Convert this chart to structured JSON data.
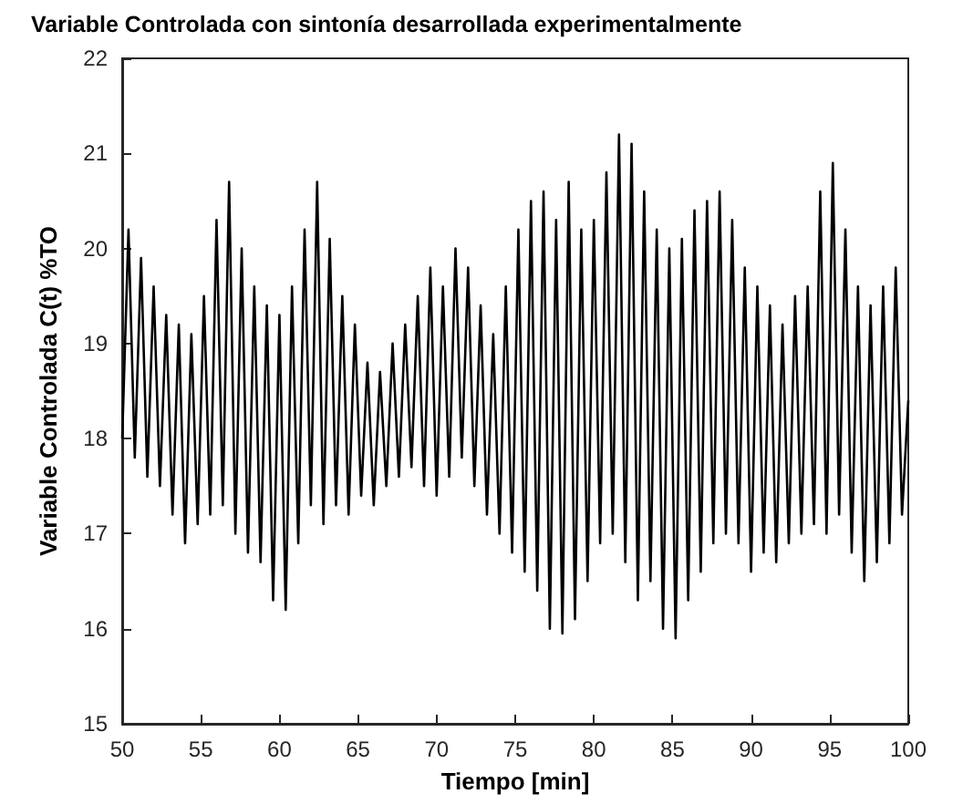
{
  "chart_data": {
    "type": "line",
    "title": "Variable Controlada con sintonía desarrollada experimentalmente",
    "xlabel": "Tiempo [min]",
    "ylabel": "Variable Controlada C(t) %TO",
    "x": [
      50,
      50.4,
      50.8,
      51.2,
      51.6,
      52,
      52.4,
      52.8,
      53.2,
      53.6,
      54,
      54.4,
      54.8,
      55.2,
      55.6,
      56,
      56.4,
      56.8,
      57.2,
      57.6,
      58,
      58.4,
      58.8,
      59.2,
      59.6,
      60,
      60.4,
      60.8,
      61.2,
      61.6,
      62,
      62.4,
      62.8,
      63.2,
      63.6,
      64,
      64.4,
      64.8,
      65.2,
      65.6,
      66,
      66.4,
      66.8,
      67.2,
      67.6,
      68,
      68.4,
      68.8,
      69.2,
      69.6,
      70,
      70.4,
      70.8,
      71.2,
      71.6,
      72,
      72.4,
      72.8,
      73.2,
      73.6,
      74,
      74.4,
      74.8,
      75.2,
      75.6,
      76,
      76.4,
      76.8,
      77.2,
      77.6,
      78,
      78.4,
      78.8,
      79.2,
      79.6,
      80,
      80.4,
      80.8,
      81.2,
      81.6,
      82,
      82.4,
      82.8,
      83.2,
      83.6,
      84,
      84.4,
      84.8,
      85.2,
      85.6,
      86,
      86.4,
      86.8,
      87.2,
      87.6,
      88,
      88.4,
      88.8,
      89.2,
      89.6,
      90,
      90.4,
      90.8,
      91.2,
      91.6,
      92,
      92.4,
      92.8,
      93.2,
      93.6,
      94,
      94.4,
      94.8,
      95.2,
      95.6,
      96,
      96.4,
      96.8,
      97.2,
      97.6,
      98,
      98.4,
      98.8,
      99.2,
      99.6,
      100
    ],
    "series": [
      {
        "color": "#000000",
        "values": [
          18.0,
          20.2,
          17.8,
          19.9,
          17.6,
          19.6,
          17.5,
          19.3,
          17.2,
          19.2,
          16.9,
          19.1,
          17.1,
          19.5,
          17.2,
          20.3,
          17.3,
          20.7,
          17.0,
          20.0,
          16.8,
          19.6,
          16.7,
          19.4,
          16.3,
          19.3,
          16.2,
          19.6,
          16.9,
          20.2,
          17.3,
          20.7,
          17.1,
          20.1,
          17.3,
          19.5,
          17.2,
          19.2,
          17.4,
          18.8,
          17.3,
          18.7,
          17.5,
          19.0,
          17.6,
          19.2,
          17.7,
          19.5,
          17.5,
          19.8,
          17.4,
          19.6,
          17.6,
          20.0,
          17.8,
          19.8,
          17.5,
          19.4,
          17.2,
          19.1,
          17.0,
          19.6,
          16.8,
          20.2,
          16.6,
          20.5,
          16.4,
          20.6,
          16.0,
          20.3,
          15.95,
          20.7,
          16.1,
          20.2,
          16.5,
          20.3,
          16.9,
          20.8,
          17.0,
          21.2,
          16.7,
          21.1,
          16.3,
          20.6,
          16.5,
          20.2,
          16.0,
          20.0,
          15.9,
          20.1,
          16.3,
          20.4,
          16.6,
          20.5,
          16.9,
          20.6,
          17.0,
          20.3,
          16.9,
          19.8,
          16.6,
          19.6,
          16.8,
          19.4,
          16.7,
          19.2,
          16.9,
          19.5,
          17.0,
          19.6,
          17.1,
          20.6,
          17.0,
          20.9,
          17.2,
          20.2,
          16.8,
          19.6,
          16.5,
          19.4,
          16.7,
          19.6,
          16.9,
          19.8,
          17.2,
          18.4
        ]
      }
    ],
    "xlim": [
      50,
      100
    ],
    "xticks": [
      50,
      55,
      60,
      65,
      70,
      75,
      80,
      85,
      90,
      95,
      100
    ],
    "ylim": [
      15,
      22
    ],
    "yticks": [
      15,
      16,
      17,
      18,
      19,
      20,
      21,
      22
    ],
    "grid": false,
    "marker": "none",
    "line_style": "solid"
  }
}
